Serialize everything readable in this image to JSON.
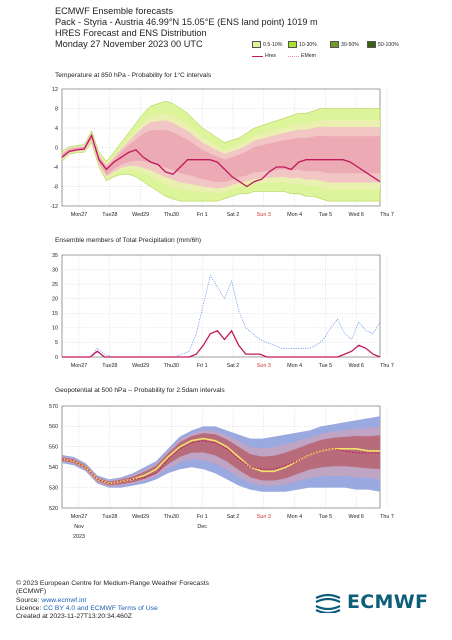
{
  "header": {
    "line1": "ECMWF Ensemble forecasts",
    "line2": "Pack - Styria - Austria 46.99°N 15.05°E (ENS land point) 1019 m",
    "line3": "HRES Forecast and ENS Distribution",
    "line4": "Monday 27 November 2023 00 UTC"
  },
  "legend": {
    "items": [
      {
        "label": "0.5-10%",
        "color": "#ddf59a"
      },
      {
        "label": "10-30%",
        "color": "#a6e22e"
      },
      {
        "label": "30-50%",
        "color": "#6f9a27"
      },
      {
        "label": "50-100%",
        "color": "#3a5f15"
      }
    ],
    "hres_label": "Hres",
    "emem_label": "EMem",
    "hres_color": "#c2185b",
    "emem_color": "#f48fb1"
  },
  "panels": {
    "temp_title": "Temperature at 850 hPa - Probability for 1°C intervals",
    "precip_title": "Ensemble members of Total Precipitation (mm/6h)",
    "geo_title": "Geopotential at 500 hPa -- Probability for 2.5dam intervals"
  },
  "x_ticks": [
    "Mon27",
    "Tue28",
    "Wed29",
    "Thu30",
    "Fri 1",
    "Sat 2",
    "Sun 3",
    "Mon 4",
    "Tue 5",
    "Wed 6",
    "Thu 7"
  ],
  "x_tick_red": [
    "Sun 3"
  ],
  "x_sub_labels": [
    "Nov",
    "2023",
    "Dec"
  ],
  "chart_data": [
    {
      "type": "area",
      "title": "Temperature at 850 hPa - Probability for 1°C intervals",
      "x": [
        "Mon27",
        "Tue28",
        "Wed29",
        "Thu30",
        "Fri 1",
        "Sat 2",
        "Sun 3",
        "Mon 4",
        "Tue 5",
        "Wed 6",
        "Thu 7"
      ],
      "ylim": [
        -12,
        12
      ],
      "yticks": [
        -12,
        -8,
        -4,
        0,
        4,
        8,
        12
      ],
      "hres": {
        "name": "Hres",
        "values": [
          -2,
          -0.8,
          -0.5,
          -0.3,
          2.5,
          -2.5,
          -4.5,
          -3.0,
          -2.0,
          -1.0,
          -0.5,
          -2.0,
          -3.0,
          -3.5,
          -5.0,
          -5.5,
          -4.0,
          -2.5,
          -2.5,
          -2.5,
          -2.5,
          -3.0,
          -4.5,
          -6.0,
          -7.0,
          -8.0,
          -7.0,
          -6.5,
          -5.0,
          -4.0,
          -4.0,
          -4.5,
          -3.0,
          -2.5,
          -2.5,
          -2.5,
          -2.5,
          -2.5,
          -2.5,
          -3.0,
          -4.0,
          -5.0,
          -6.0,
          -7.0
        ]
      },
      "spread_low": [
        -2.8,
        -1.4,
        -1.0,
        -1.0,
        1.0,
        -4.0,
        -6.8,
        -6.0,
        -5.5,
        -5.5,
        -6.0,
        -7.0,
        -8.0,
        -9.0,
        -10.0,
        -10.5,
        -11.0,
        -11.0,
        -11.0,
        -11.0,
        -11.0,
        -11.0,
        -10.5,
        -10.0,
        -9.5,
        -9.5,
        -9.0,
        -9.0,
        -9.0,
        -9.0,
        -9.0,
        -9.5,
        -9.5,
        -10.0,
        -10.0,
        -10.5,
        -11.0,
        -11.0,
        -11.0,
        -11.0,
        -11.0,
        -11.0,
        -11.0,
        -11.0
      ],
      "spread_high": [
        -0.8,
        0.2,
        0.4,
        0.6,
        3.4,
        -1.0,
        -2.8,
        -1.0,
        1.0,
        3.0,
        5.0,
        7.0,
        8.5,
        9.0,
        9.5,
        9.0,
        8.0,
        7.0,
        5.5,
        4.0,
        3.0,
        2.0,
        1.0,
        1.5,
        2.0,
        3.0,
        4.0,
        4.5,
        5.0,
        5.5,
        6.0,
        6.5,
        7.0,
        7.0,
        7.5,
        8.0,
        8.0,
        8.0,
        8.0,
        8.0,
        8.0,
        8.0,
        8.0,
        8.0
      ]
    },
    {
      "type": "line",
      "title": "Ensemble members of Total Precipitation (mm/6h)",
      "x": [
        "Mon27",
        "Tue28",
        "Wed29",
        "Thu30",
        "Fri 1",
        "Sat 2",
        "Sun 3",
        "Mon 4",
        "Tue 5",
        "Wed 6",
        "Thu 7"
      ],
      "ylim": [
        0,
        35
      ],
      "yticks": [
        0,
        5,
        10,
        15,
        20,
        25,
        30,
        35
      ],
      "hres": {
        "name": "Hres",
        "values": [
          0,
          0,
          0,
          0,
          0,
          2,
          0,
          0,
          0,
          0,
          0,
          0,
          0,
          0,
          0,
          0,
          0,
          0,
          0,
          1,
          4,
          8,
          9,
          6,
          9,
          4,
          1,
          1,
          1,
          0,
          0,
          0,
          0,
          0,
          0,
          0,
          0,
          0,
          0,
          0,
          1,
          2,
          4,
          3,
          1,
          0
        ]
      },
      "ens_max": [
        0,
        0,
        0,
        0,
        0,
        3,
        1,
        0,
        0,
        0,
        0,
        0,
        0,
        0,
        0,
        0,
        0,
        1,
        2,
        8,
        18,
        28,
        24,
        20,
        26,
        16,
        10,
        8,
        6,
        5,
        4,
        3,
        3,
        3,
        3,
        3,
        4,
        6,
        10,
        13,
        8,
        6,
        12,
        9,
        8,
        12
      ]
    },
    {
      "type": "area",
      "title": "Geopotential at 500 hPa -- Probability for 2.5dam intervals",
      "x": [
        "Mon27",
        "Tue28",
        "Wed29",
        "Thu30",
        "Fri 1",
        "Sat 2",
        "Sun 3",
        "Mon 4",
        "Tue 5",
        "Wed 6",
        "Thu 7"
      ],
      "ylim": [
        520,
        570
      ],
      "yticks": [
        520,
        530,
        540,
        550,
        560,
        570
      ],
      "hres": {
        "name": "Hres",
        "values": [
          544,
          543,
          540,
          534,
          532,
          533,
          534,
          535,
          537,
          544,
          549,
          552,
          553,
          552,
          549,
          544,
          540,
          539,
          539,
          541,
          543,
          546,
          548,
          549,
          548,
          547,
          547,
          547
        ]
      },
      "ens_mean": [
        544,
        543,
        540,
        534,
        532,
        533,
        534,
        536,
        539,
        545,
        550,
        553,
        554,
        553,
        550,
        545,
        540,
        538,
        538,
        540,
        543,
        546,
        548,
        549,
        549,
        549,
        548,
        548
      ],
      "spread_low": [
        542,
        541,
        538,
        532,
        530,
        530,
        531,
        532,
        534,
        537,
        539,
        540,
        539,
        537,
        534,
        531,
        529,
        528,
        528,
        528,
        529,
        530,
        530,
        530,
        530,
        529,
        529,
        528
      ],
      "spread_high": [
        546,
        545,
        542,
        536,
        534,
        535,
        537,
        540,
        543,
        549,
        555,
        558,
        560,
        560,
        558,
        556,
        554,
        554,
        555,
        556,
        557,
        558,
        560,
        561,
        562,
        563,
        564,
        565
      ]
    }
  ],
  "footer": {
    "copyright": "© 2023 European Centre for Medium-Range Weather Forecasts",
    "org": "(ECMWF)",
    "source_label": "Source: ",
    "source_link": "www.ecmwf.int",
    "licence_label": "Licence: ",
    "licence_link": "CC BY 4.0 and ECMWF Terms of Use",
    "created": "Created at 2023-11-27T13:20:34.460Z"
  },
  "logo": {
    "text": "ECMWF",
    "color": "#0d5e7a"
  }
}
